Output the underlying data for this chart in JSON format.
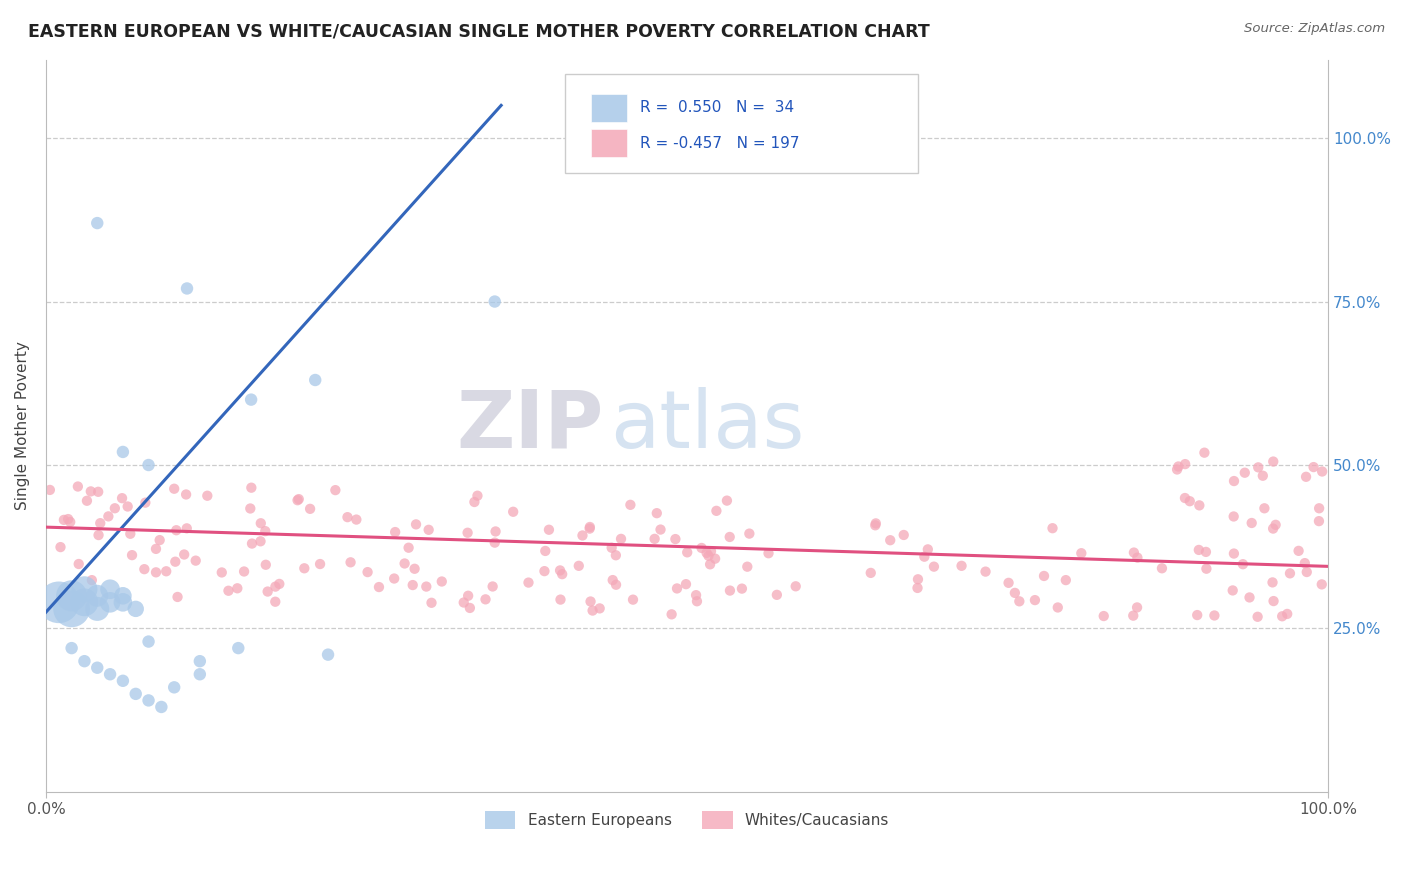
{
  "title": "EASTERN EUROPEAN VS WHITE/CAUCASIAN SINGLE MOTHER POVERTY CORRELATION CHART",
  "source": "Source: ZipAtlas.com",
  "ylabel": "Single Mother Poverty",
  "blue_R": 0.55,
  "blue_N": 34,
  "pink_R": -0.457,
  "pink_N": 197,
  "blue_color": "#a8c8e8",
  "pink_color": "#f4a8b8",
  "blue_line_color": "#3366bb",
  "pink_line_color": "#e05080",
  "background_color": "#ffffff",
  "watermark_ZIP": "ZIP",
  "watermark_atlas": "atlas",
  "ylim_min": 0.0,
  "ylim_max": 1.12,
  "xlim_min": 0.0,
  "xlim_max": 1.0,
  "ytick_positions": [
    0.25,
    0.5,
    0.75,
    1.0
  ],
  "ytick_labels": [
    "25.0%",
    "50.0%",
    "75.0%",
    "100.0%"
  ],
  "blue_trend_x": [
    0.0,
    0.355
  ],
  "blue_trend_y": [
    0.275,
    1.05
  ],
  "pink_trend_x": [
    0.0,
    1.0
  ],
  "pink_trend_y": [
    0.405,
    0.345
  ],
  "seed_blue": 77,
  "seed_pink": 42
}
